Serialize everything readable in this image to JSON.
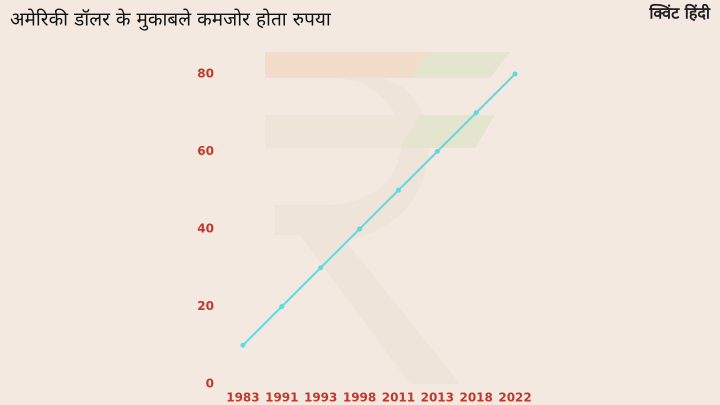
{
  "brand": "क्विंट हिंदी",
  "chart_data": {
    "type": "line",
    "title": "अमेरिकी डॉलर के मुकाबले कमजोर होता रुपया",
    "categories": [
      "1983",
      "1991",
      "1993",
      "1998",
      "2011",
      "2013",
      "2018",
      "2022"
    ],
    "values": [
      10,
      20,
      30,
      40,
      50,
      60,
      70,
      80
    ],
    "color": "#5fdbe0",
    "ylim": [
      0,
      80
    ],
    "yticks": [
      0,
      20,
      40,
      60,
      80
    ],
    "grid": false
  }
}
